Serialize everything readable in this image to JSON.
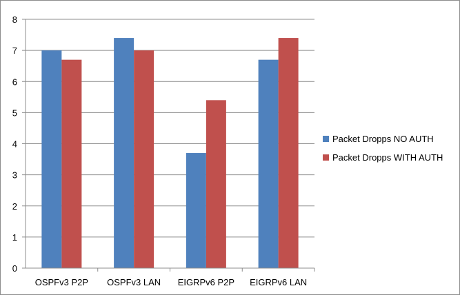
{
  "chart_data": {
    "type": "bar",
    "title": "",
    "xlabel": "",
    "ylabel": "",
    "categories": [
      "OSPFv3 P2P",
      "OSPFv3 LAN",
      "EIGRPv6 P2P",
      "EIGRPv6 LAN"
    ],
    "series": [
      {
        "name": "Packet Dropps NO AUTH",
        "values": [
          7,
          7.4,
          3.7,
          6.7
        ],
        "color": "#4f81bd"
      },
      {
        "name": "Packet Dropps WITH AUTH",
        "values": [
          6.7,
          7,
          5.4,
          7.4
        ],
        "color": "#c0504d"
      }
    ],
    "ylim": [
      0,
      8
    ],
    "yticks": [
      "0",
      "1",
      "2",
      "3",
      "4",
      "5",
      "6",
      "7",
      "8"
    ],
    "grid": true,
    "legend_position": "right"
  }
}
